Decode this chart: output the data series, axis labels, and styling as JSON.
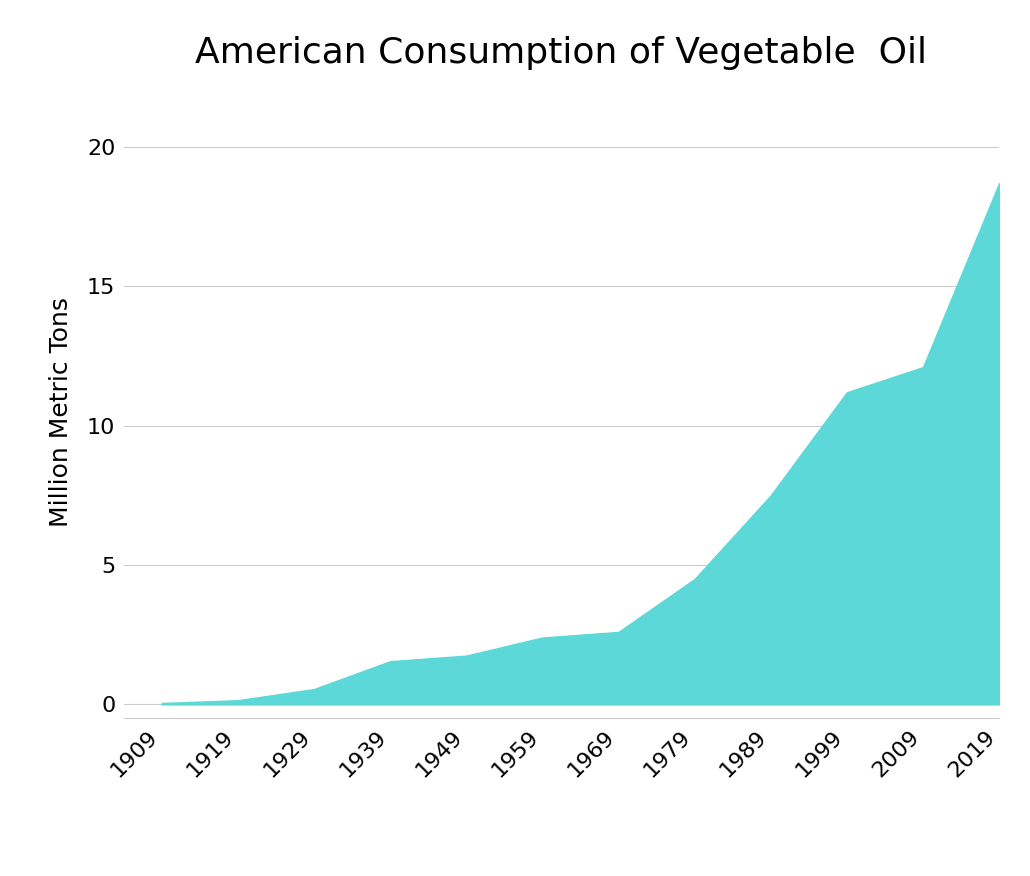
{
  "title": "American Consumption of Vegetable  Oil",
  "ylabel": "Million Metric Tons",
  "background_color": "#ffffff",
  "fill_color": "#5DD8D8",
  "grid_color": "#cccccc",
  "years": [
    1909,
    1919,
    1929,
    1939,
    1949,
    1959,
    1969,
    1979,
    1989,
    1999,
    2009,
    2019
  ],
  "values": [
    0.05,
    0.15,
    0.55,
    1.55,
    1.75,
    2.4,
    2.6,
    4.5,
    7.5,
    11.2,
    12.1,
    18.7
  ],
  "xtick_labels": [
    "1909",
    "1919",
    "1929",
    "1939",
    "1949",
    "1959",
    "1969",
    "1979",
    "1989",
    "1999",
    "2009",
    "2019"
  ],
  "xtick_years": [
    1909,
    1919,
    1929,
    1939,
    1949,
    1959,
    1969,
    1979,
    1989,
    1999,
    2009,
    2019
  ],
  "ytick_values": [
    0,
    5,
    10,
    15,
    20
  ],
  "ylim": [
    -0.5,
    21.5
  ],
  "xlim": [
    1904,
    2019
  ],
  "title_fontsize": 26,
  "label_fontsize": 18,
  "tick_fontsize": 16
}
